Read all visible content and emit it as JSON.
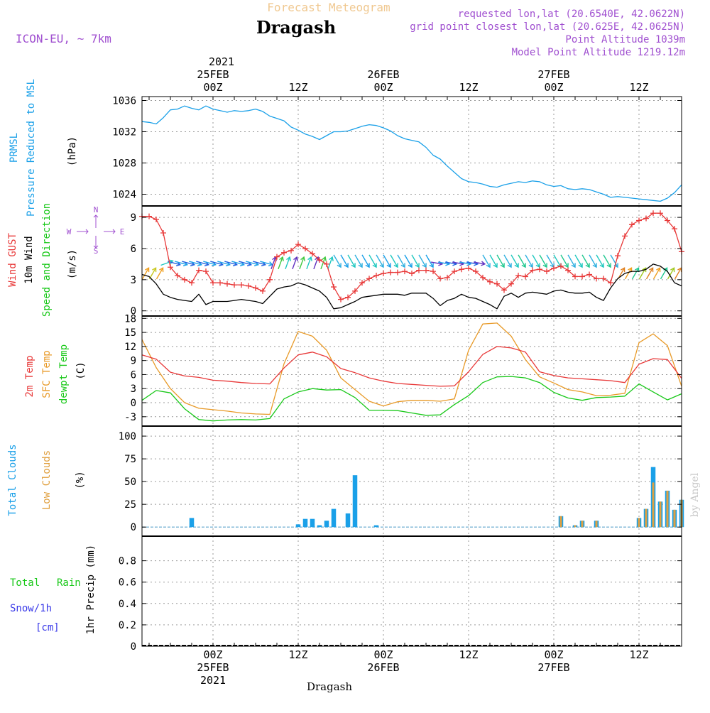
{
  "header": {
    "supertitle": "Forecast Meteogram",
    "location": "Dragash",
    "model": "ICON-EU, ~ 7km",
    "requested": "requested lon,lat (20.6540E, 42.0622N)",
    "gridpoint": "grid point closest lon,lat (20.625E, 42.0625N)",
    "point_alt": "Point Altitude 1039m",
    "model_alt": "Model Point Altitude 1219.12m",
    "watermark": "by Angel",
    "footer_location": "Dragash"
  },
  "colors": {
    "pressure": "#1aa0e8",
    "gust": "#e83838",
    "wind": "#000000",
    "temp2m": "#e83838",
    "sfc": "#e89a28",
    "dewpt": "#18c818",
    "total_clouds": "#1aa0e8",
    "low_clouds": "#e0a040",
    "title_orange": "#f0c890",
    "meta_purple": "#a050d0",
    "rain": "#18c818",
    "snow": "#3838e8"
  },
  "time_axis": {
    "top_year": "2021",
    "ticks": [
      {
        "h": 24,
        "top": [
          "25FEB",
          "00Z"
        ],
        "bottom": [
          "00Z",
          "25FEB",
          "2021"
        ]
      },
      {
        "h": 36,
        "top": [
          "12Z"
        ],
        "bottom": [
          "12Z"
        ]
      },
      {
        "h": 48,
        "top": [
          "26FEB",
          "00Z"
        ],
        "bottom": [
          "00Z",
          "26FEB"
        ]
      },
      {
        "h": 60,
        "top": [
          "12Z"
        ],
        "bottom": [
          "12Z"
        ]
      },
      {
        "h": 72,
        "top": [
          "27FEB",
          "00Z"
        ],
        "bottom": [
          "00Z",
          "27FEB"
        ]
      },
      {
        "h": 84,
        "top": [
          "12Z"
        ],
        "bottom": [
          "12Z"
        ]
      }
    ]
  },
  "panels": {
    "pressure": {
      "labels": [
        "PRMSL",
        "Pressure Reduced to MSL",
        "(hPa)"
      ],
      "yticks": [
        1024,
        1028,
        1032,
        1036
      ]
    },
    "wind": {
      "labels": [
        "Wind GUST",
        "10m Wind",
        "Speed and Direction",
        "(m/s)"
      ],
      "yticks": [
        0,
        3,
        6,
        9
      ],
      "compass": {
        "n": "N",
        "s": "S",
        "w": "W",
        "e": "E"
      }
    },
    "temp": {
      "labels": [
        "2m Temp",
        "SFC Temp",
        "dewpt Temp",
        "(C)"
      ],
      "yticks": [
        -3,
        0,
        3,
        6,
        9,
        12,
        15,
        18
      ]
    },
    "clouds": {
      "labels": [
        "Total Clouds",
        "Low Clouds",
        "(%)"
      ],
      "yticks": [
        0,
        25,
        50,
        75,
        100
      ]
    },
    "precip": {
      "labels": [
        "Total",
        "Rain",
        "Snow/1h",
        "[cm]",
        "1hr Precip (mm)"
      ],
      "yticks": [
        "0",
        "0.2",
        "0.4",
        "0.6",
        "0.8"
      ]
    }
  },
  "chart_data": [
    {
      "type": "line",
      "name": "PRMSL",
      "ylabel": "Pressure Reduced to MSL (hPa)",
      "ylim": [
        1022.5,
        1036.5
      ],
      "x_hours": [
        14,
        15,
        16,
        17,
        18,
        19,
        20,
        21,
        22,
        23,
        24,
        25,
        26,
        27,
        28,
        29,
        30,
        31,
        32,
        33,
        34,
        35,
        36,
        37,
        38,
        39,
        40,
        41,
        42,
        43,
        44,
        45,
        46,
        47,
        48,
        49,
        50,
        51,
        52,
        53,
        54,
        55,
        56,
        57,
        58,
        59,
        60,
        61,
        62,
        63,
        64,
        65,
        66,
        67,
        68,
        69,
        70,
        71,
        72,
        73,
        74,
        75,
        76,
        77,
        78,
        79,
        80,
        81,
        82,
        83,
        84,
        85,
        86,
        87,
        88,
        89,
        90
      ],
      "values": [
        1033.3,
        1033.2,
        1033.0,
        1033.8,
        1034.8,
        1034.9,
        1035.3,
        1035.0,
        1034.8,
        1035.3,
        1034.9,
        1034.7,
        1034.5,
        1034.7,
        1034.6,
        1034.7,
        1034.9,
        1034.6,
        1034.0,
        1033.7,
        1033.4,
        1032.6,
        1032.2,
        1031.7,
        1031.4,
        1031.0,
        1031.5,
        1032.0,
        1032.0,
        1032.1,
        1032.4,
        1032.7,
        1032.9,
        1032.8,
        1032.5,
        1032.1,
        1031.5,
        1031.1,
        1030.9,
        1030.7,
        1030.0,
        1029.0,
        1028.5,
        1027.6,
        1026.8,
        1026.0,
        1025.6,
        1025.5,
        1025.3,
        1025.0,
        1024.9,
        1025.2,
        1025.4,
        1025.6,
        1025.5,
        1025.7,
        1025.6,
        1025.2,
        1025.0,
        1025.1,
        1024.7,
        1024.6,
        1024.7,
        1024.6,
        1024.3,
        1024.0,
        1023.6,
        1023.7,
        1023.6,
        1023.5,
        1023.4,
        1023.3,
        1023.2,
        1023.1,
        1023.5,
        1024.2,
        1025.2
      ]
    },
    {
      "type": "line",
      "name": "Wind GUST",
      "ylabel": "(m/s)",
      "ylim": [
        0,
        10
      ],
      "x_hours": [
        14,
        15,
        16,
        17,
        18,
        19,
        20,
        21,
        22,
        23,
        24,
        25,
        26,
        27,
        28,
        29,
        30,
        31,
        32,
        33,
        34,
        35,
        36,
        37,
        38,
        39,
        40,
        41,
        42,
        43,
        44,
        45,
        46,
        47,
        48,
        49,
        50,
        51,
        52,
        53,
        54,
        55,
        56,
        57,
        58,
        59,
        60,
        61,
        62,
        63,
        64,
        65,
        66,
        67,
        68,
        69,
        70,
        71,
        72,
        73,
        74,
        75,
        76,
        77,
        78,
        79,
        80,
        81,
        82,
        83,
        84,
        85,
        86,
        87,
        88,
        89,
        90
      ],
      "values": [
        9.1,
        9.1,
        8.8,
        7.5,
        4.2,
        3.4,
        3.0,
        2.7,
        3.9,
        3.8,
        2.7,
        2.7,
        2.6,
        2.5,
        2.5,
        2.4,
        2.2,
        1.9,
        3.0,
        5.2,
        5.6,
        5.8,
        6.4,
        6.0,
        5.5,
        4.9,
        4.5,
        2.3,
        1.1,
        1.3,
        1.9,
        2.7,
        3.1,
        3.4,
        3.6,
        3.7,
        3.7,
        3.8,
        3.6,
        3.9,
        3.9,
        3.8,
        3.1,
        3.2,
        3.8,
        4.0,
        4.1,
        3.8,
        3.2,
        2.8,
        2.6,
        2.0,
        2.6,
        3.4,
        3.3,
        3.9,
        4.0,
        3.8,
        4.1,
        4.3,
        3.9,
        3.3,
        3.3,
        3.5,
        3.1,
        3.1,
        2.7,
        5.3,
        7.2,
        8.3,
        8.7,
        8.9,
        9.4,
        9.4,
        8.7,
        7.9,
        5.7
      ]
    },
    {
      "type": "line",
      "name": "10m Wind",
      "ylabel": "(m/s)",
      "ylim": [
        0,
        10
      ],
      "x_hours": [
        14,
        15,
        16,
        17,
        18,
        19,
        20,
        21,
        22,
        23,
        24,
        25,
        26,
        27,
        28,
        29,
        30,
        31,
        32,
        33,
        34,
        35,
        36,
        37,
        38,
        39,
        40,
        41,
        42,
        43,
        44,
        45,
        46,
        47,
        48,
        49,
        50,
        51,
        52,
        53,
        54,
        55,
        56,
        57,
        58,
        59,
        60,
        61,
        62,
        63,
        64,
        65,
        66,
        67,
        68,
        69,
        70,
        71,
        72,
        73,
        74,
        75,
        76,
        77,
        78,
        79,
        80,
        81,
        82,
        83,
        84,
        85,
        86,
        87,
        88,
        89,
        90
      ],
      "values": [
        3.5,
        3.3,
        2.6,
        1.6,
        1.3,
        1.1,
        1.0,
        0.9,
        1.6,
        0.6,
        0.9,
        0.9,
        0.9,
        1.0,
        1.1,
        1.0,
        0.9,
        0.7,
        1.4,
        2.1,
        2.3,
        2.4,
        2.7,
        2.5,
        2.2,
        1.9,
        1.3,
        0.2,
        0.3,
        0.6,
        0.9,
        1.3,
        1.4,
        1.5,
        1.6,
        1.6,
        1.6,
        1.5,
        1.7,
        1.7,
        1.7,
        1.2,
        0.5,
        1.0,
        1.2,
        1.6,
        1.3,
        1.2,
        0.9,
        0.6,
        0.2,
        1.4,
        1.7,
        1.3,
        1.7,
        1.8,
        1.7,
        1.6,
        1.9,
        2.0,
        1.8,
        1.7,
        1.7,
        1.8,
        1.3,
        1.0,
        2.2,
        3.1,
        3.6,
        3.8,
        3.8,
        4.0,
        4.5,
        4.3,
        3.8,
        2.7,
        2.4
      ]
    },
    {
      "type": "line",
      "name": "2m Temp",
      "ylabel": "(C)",
      "ylim": [
        -5,
        18.5
      ],
      "x_hours": [
        14,
        16,
        18,
        20,
        22,
        24,
        26,
        28,
        30,
        32,
        34,
        36,
        38,
        40,
        42,
        44,
        46,
        48,
        50,
        52,
        54,
        56,
        58,
        60,
        62,
        64,
        66,
        68,
        70,
        72,
        74,
        76,
        78,
        80,
        82,
        84,
        86,
        88,
        90
      ],
      "values": [
        10.2,
        9.3,
        6.5,
        5.7,
        5.4,
        4.8,
        4.6,
        4.3,
        4.1,
        4.0,
        7.4,
        10.2,
        10.8,
        9.8,
        7.3,
        6.4,
        5.3,
        4.6,
        4.1,
        3.9,
        3.7,
        3.5,
        3.6,
        6.6,
        10.3,
        12.0,
        11.7,
        10.8,
        6.6,
        5.8,
        5.3,
        5.1,
        4.9,
        4.7,
        4.3,
        8.2,
        9.4,
        9.2,
        5.2
      ]
    },
    {
      "type": "line",
      "name": "SFC Temp",
      "ylabel": "(C)",
      "ylim": [
        -5,
        18.5
      ],
      "x_hours": [
        14,
        16,
        18,
        20,
        22,
        24,
        26,
        28,
        30,
        32,
        34,
        36,
        38,
        40,
        42,
        44,
        46,
        48,
        50,
        52,
        54,
        56,
        58,
        60,
        62,
        64,
        66,
        68,
        70,
        72,
        74,
        76,
        78,
        80,
        82,
        84,
        86,
        88,
        90
      ],
      "values": [
        13.5,
        7.5,
        3.0,
        0.0,
        -1.2,
        -1.5,
        -1.8,
        -2.2,
        -2.4,
        -2.5,
        8.3,
        15.2,
        14.2,
        11.2,
        5.3,
        2.8,
        0.3,
        -0.7,
        0.2,
        0.5,
        0.5,
        0.3,
        0.8,
        11.2,
        16.8,
        17.0,
        14.2,
        9.2,
        5.5,
        4.2,
        2.8,
        2.3,
        1.5,
        1.6,
        2.0,
        12.8,
        14.7,
        12.2,
        3.5
      ]
    },
    {
      "type": "line",
      "name": "dewpt Temp",
      "ylabel": "(C)",
      "ylim": [
        -5,
        18.5
      ],
      "x_hours": [
        14,
        16,
        18,
        20,
        22,
        24,
        26,
        28,
        30,
        32,
        34,
        36,
        38,
        40,
        42,
        44,
        46,
        48,
        50,
        52,
        54,
        56,
        58,
        60,
        62,
        64,
        66,
        68,
        70,
        72,
        74,
        76,
        78,
        80,
        82,
        84,
        86,
        88,
        90
      ],
      "values": [
        0.5,
        2.6,
        2.1,
        -1.3,
        -3.6,
        -3.9,
        -3.7,
        -3.6,
        -3.7,
        -3.4,
        0.8,
        2.3,
        3.0,
        2.7,
        2.8,
        1.1,
        -1.6,
        -1.6,
        -1.7,
        -2.2,
        -2.7,
        -2.6,
        -0.4,
        1.5,
        4.3,
        5.5,
        5.6,
        5.3,
        4.3,
        2.2,
        1.0,
        0.5,
        1.1,
        1.2,
        1.4,
        4.0,
        2.3,
        0.6,
        1.9
      ]
    },
    {
      "type": "bar",
      "name": "Total Clouds",
      "ylabel": "(%)",
      "ylim": [
        -5,
        110
      ],
      "x_hours": [
        21,
        26,
        35,
        36,
        37,
        38,
        39,
        40,
        41,
        43,
        44,
        47,
        48,
        73,
        75,
        76,
        78,
        84,
        85,
        86,
        87,
        88,
        89,
        90
      ],
      "values": [
        10,
        0,
        0,
        3,
        9,
        9,
        2,
        7,
        20,
        15,
        57,
        2,
        0,
        12,
        2,
        7,
        7,
        10,
        20,
        66,
        28,
        40,
        19,
        30
      ]
    },
    {
      "type": "bar",
      "name": "Low Clouds",
      "ylabel": "(%)",
      "ylim": [
        -5,
        110
      ],
      "x_hours": [
        73,
        75,
        76,
        78,
        84,
        85,
        86,
        87,
        88,
        89,
        90
      ],
      "values": [
        12,
        2,
        7,
        7,
        10,
        20,
        49,
        28,
        40,
        19,
        30
      ]
    },
    {
      "type": "line",
      "name": "1hr Precip",
      "ylabel": "1hr Precip (mm)",
      "ylim": [
        0,
        1
      ],
      "x_hours": [
        14,
        90
      ],
      "values": [
        0,
        0
      ]
    }
  ]
}
